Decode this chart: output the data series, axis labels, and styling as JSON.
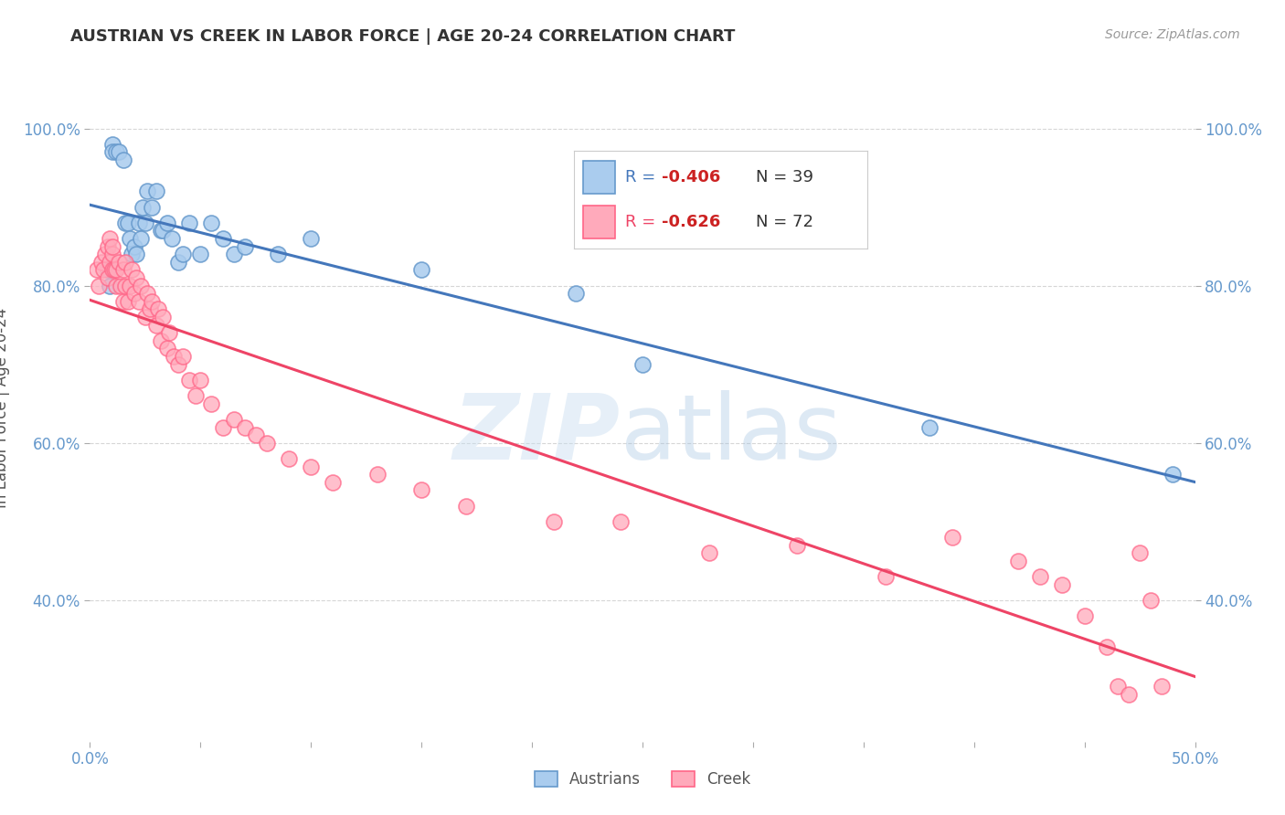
{
  "title": "AUSTRIAN VS CREEK IN LABOR FORCE | AGE 20-24 CORRELATION CHART",
  "source": "Source: ZipAtlas.com",
  "ylabel": "In Labor Force | Age 20-24",
  "xlim": [
    0.0,
    0.5
  ],
  "ylim": [
    0.22,
    1.07
  ],
  "yticks": [
    0.4,
    0.6,
    0.8,
    1.0
  ],
  "ytick_labels": [
    "40.0%",
    "60.0%",
    "80.0%",
    "100.0%"
  ],
  "xtick_labels": [
    "0.0%",
    "",
    "",
    "",
    "",
    "",
    "",
    "",
    "",
    "",
    "50.0%"
  ],
  "xticks": [
    0.0,
    0.05,
    0.1,
    0.15,
    0.2,
    0.25,
    0.3,
    0.35,
    0.4,
    0.45,
    0.5
  ],
  "background_color": "#ffffff",
  "grid_color": "#cccccc",
  "axis_color": "#6699cc",
  "austrian_color_face": "#aaccee",
  "austrian_color_edge": "#6699cc",
  "creek_color_face": "#ffaabb",
  "creek_color_edge": "#ff6688",
  "austrian_line_color": "#4477bb",
  "creek_line_color": "#ee4466",
  "legend_R_color": "#cc2222",
  "legend_label_color": "#333333",
  "legend_austrian_R": "-0.406",
  "legend_austrian_N": "39",
  "legend_creek_R": "-0.626",
  "legend_creek_N": "72",
  "austrians_x": [
    0.008,
    0.009,
    0.01,
    0.01,
    0.012,
    0.013,
    0.015,
    0.016,
    0.017,
    0.018,
    0.019,
    0.02,
    0.021,
    0.022,
    0.023,
    0.024,
    0.025,
    0.026,
    0.028,
    0.03,
    0.032,
    0.033,
    0.035,
    0.037,
    0.04,
    0.042,
    0.045,
    0.05,
    0.055,
    0.06,
    0.065,
    0.07,
    0.085,
    0.1,
    0.15,
    0.22,
    0.25,
    0.38,
    0.49
  ],
  "austrians_y": [
    0.82,
    0.8,
    0.98,
    0.97,
    0.97,
    0.97,
    0.96,
    0.88,
    0.88,
    0.86,
    0.84,
    0.85,
    0.84,
    0.88,
    0.86,
    0.9,
    0.88,
    0.92,
    0.9,
    0.92,
    0.87,
    0.87,
    0.88,
    0.86,
    0.83,
    0.84,
    0.88,
    0.84,
    0.88,
    0.86,
    0.84,
    0.85,
    0.84,
    0.86,
    0.82,
    0.79,
    0.7,
    0.62,
    0.56
  ],
  "creek_x": [
    0.003,
    0.004,
    0.005,
    0.006,
    0.007,
    0.008,
    0.008,
    0.009,
    0.009,
    0.01,
    0.01,
    0.01,
    0.011,
    0.012,
    0.012,
    0.013,
    0.014,
    0.015,
    0.015,
    0.016,
    0.016,
    0.017,
    0.018,
    0.019,
    0.02,
    0.021,
    0.022,
    0.023,
    0.025,
    0.026,
    0.027,
    0.028,
    0.03,
    0.031,
    0.032,
    0.033,
    0.035,
    0.036,
    0.038,
    0.04,
    0.042,
    0.045,
    0.048,
    0.05,
    0.055,
    0.06,
    0.065,
    0.07,
    0.075,
    0.08,
    0.09,
    0.1,
    0.11,
    0.13,
    0.15,
    0.17,
    0.21,
    0.24,
    0.28,
    0.32,
    0.36,
    0.39,
    0.42,
    0.43,
    0.44,
    0.45,
    0.46,
    0.465,
    0.47,
    0.475,
    0.48,
    0.485
  ],
  "creek_y": [
    0.82,
    0.8,
    0.83,
    0.82,
    0.84,
    0.81,
    0.85,
    0.83,
    0.86,
    0.82,
    0.84,
    0.85,
    0.82,
    0.8,
    0.82,
    0.83,
    0.8,
    0.78,
    0.82,
    0.8,
    0.83,
    0.78,
    0.8,
    0.82,
    0.79,
    0.81,
    0.78,
    0.8,
    0.76,
    0.79,
    0.77,
    0.78,
    0.75,
    0.77,
    0.73,
    0.76,
    0.72,
    0.74,
    0.71,
    0.7,
    0.71,
    0.68,
    0.66,
    0.68,
    0.65,
    0.62,
    0.63,
    0.62,
    0.61,
    0.6,
    0.58,
    0.57,
    0.55,
    0.56,
    0.54,
    0.52,
    0.5,
    0.5,
    0.46,
    0.47,
    0.43,
    0.48,
    0.45,
    0.43,
    0.42,
    0.38,
    0.34,
    0.29,
    0.28,
    0.46,
    0.4,
    0.29
  ]
}
